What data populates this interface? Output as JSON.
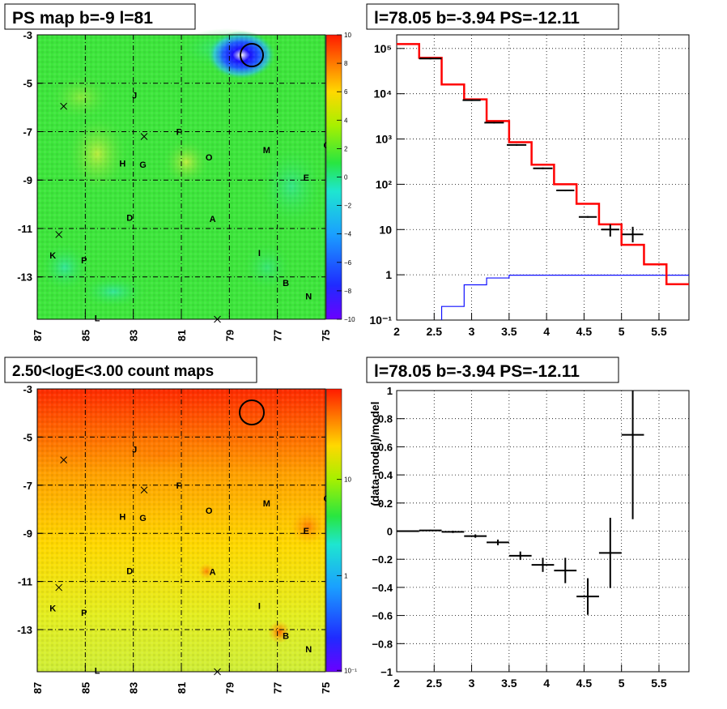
{
  "panels": {
    "tl": {
      "title": "PS map b=-9 l=81"
    },
    "tr": {
      "title": "l=78.05 b=-3.94 PS=-12.11"
    },
    "bl": {
      "title": "2.50<logE<3.00 count maps"
    },
    "br": {
      "title": "l=78.05 b=-3.94 PS=-12.11"
    }
  },
  "map_axes": {
    "x_ticks": [
      "87",
      "85",
      "83",
      "81",
      "79",
      "77",
      "75"
    ],
    "y_ticks": [
      "-3",
      "-5",
      "-7",
      "-9",
      "-11",
      "-13"
    ]
  },
  "map_labels": [
    {
      "t": "J",
      "l": 82.95,
      "b": -5.5
    },
    {
      "t": "F",
      "l": 81.1,
      "b": -7.0
    },
    {
      "t": "H",
      "l": 83.45,
      "b": -8.3
    },
    {
      "t": "G",
      "l": 82.6,
      "b": -8.35
    },
    {
      "t": "O",
      "l": 79.85,
      "b": -8.05
    },
    {
      "t": "M",
      "l": 77.45,
      "b": -7.75
    },
    {
      "t": "C",
      "l": 74.95,
      "b": -7.55
    },
    {
      "t": "E",
      "l": 75.8,
      "b": -8.9
    },
    {
      "t": "D",
      "l": 83.15,
      "b": -10.55
    },
    {
      "t": "A",
      "l": 79.7,
      "b": -10.6
    },
    {
      "t": "I",
      "l": 77.75,
      "b": -12.0
    },
    {
      "t": "K",
      "l": 86.35,
      "b": -12.1
    },
    {
      "t": "P",
      "l": 85.05,
      "b": -12.3
    },
    {
      "t": "B",
      "l": 76.65,
      "b": -13.25
    },
    {
      "t": "N",
      "l": 75.7,
      "b": -13.8
    },
    {
      "t": "L",
      "l": 84.5,
      "b": -14.7
    }
  ],
  "map_crosses": [
    {
      "l": 85.9,
      "b": -5.95
    },
    {
      "l": 82.55,
      "b": -7.2
    },
    {
      "l": 86.1,
      "b": -11.25
    },
    {
      "l": 79.5,
      "b": -14.75
    }
  ],
  "colorbars": {
    "ps": {
      "labels": [
        "10",
        "8",
        "6",
        "4",
        "2",
        "0",
        "−2",
        "−4",
        "−6",
        "−8",
        "−10"
      ]
    },
    "counts": {
      "labels": [
        "10",
        "1",
        "10⁻¹"
      ]
    }
  },
  "chart_data": [
    {
      "type": "heatmap",
      "title": "PS map b=-9 l=81",
      "xlim": [
        87,
        75
      ],
      "ylim": [
        -14.75,
        -3
      ],
      "zlim": [
        -10,
        10
      ],
      "marker_circle": {
        "l": 78.05,
        "b": -3.94
      },
      "description_values": {
        "background": 0,
        "blue_dip_at": [
          78.05,
          -3.94
        ]
      }
    },
    {
      "type": "line",
      "title": "l=78.05 b=-3.94 PS=-12.11",
      "log_y": true,
      "xlim": [
        2,
        5.9
      ],
      "ylim": [
        0.1,
        200000
      ],
      "grid": true,
      "y_ticks": [
        "10⁻¹",
        "1",
        "10",
        "10²",
        "10³",
        "10⁴",
        "10⁵"
      ],
      "x_ticks": [
        "2",
        "2.5",
        "3",
        "3.5",
        "4",
        "4.5",
        "5",
        "5.5"
      ],
      "model_red": {
        "edges": [
          2,
          2.3,
          2.6,
          2.9,
          3.2,
          3.5,
          3.8,
          4.1,
          4.4,
          4.7,
          5.0,
          5.3,
          5.6,
          5.9
        ],
        "values": [
          125000,
          62000,
          16000,
          7500,
          2500,
          850,
          270,
          100,
          37,
          13,
          4.6,
          1.7,
          0.62
        ]
      },
      "data_black": [
        {
          "x": 2.45,
          "xerr": 0.15,
          "y": 60000
        },
        {
          "x": 3.0,
          "xerr": 0.12,
          "y": 7200
        },
        {
          "x": 3.3,
          "xerr": 0.13,
          "y": 2300
        },
        {
          "x": 3.6,
          "xerr": 0.13,
          "y": 740
        },
        {
          "x": 3.95,
          "xerr": 0.13,
          "y": 225
        },
        {
          "x": 4.25,
          "xerr": 0.12,
          "y": 73
        },
        {
          "x": 4.55,
          "xerr": 0.12,
          "y": 19
        },
        {
          "x": 4.85,
          "xerr": 0.12,
          "y": 10,
          "yerr": [
            7,
            13
          ]
        },
        {
          "x": 5.15,
          "xerr": 0.14,
          "y": 7.8,
          "yerr": [
            5.2,
            11.5
          ]
        }
      ],
      "model_blue": {
        "edges": [
          2,
          2.6,
          2.9,
          3.2,
          3.5,
          5.9
        ],
        "values": [
          0.05,
          0.2,
          0.6,
          0.85,
          0.98
        ]
      }
    },
    {
      "type": "heatmap",
      "title": "2.50<logE<3.00 count maps",
      "xlim": [
        87,
        75
      ],
      "ylim": [
        -14.75,
        -3
      ],
      "z_scale": "log",
      "zlim": [
        0.1,
        30
      ],
      "marker_circle": {
        "l": 78.05,
        "b": -3.94
      }
    },
    {
      "type": "scatter",
      "title": "l=78.05 b=-3.94 PS=-12.11",
      "xlim": [
        2,
        5.9
      ],
      "ylim": [
        -1,
        1
      ],
      "grid": true,
      "ylabel": "(data-model)/model",
      "x_ticks": [
        "2",
        "2.5",
        "3",
        "3.5",
        "4",
        "4.5",
        "5",
        "5.5"
      ],
      "y_ticks": [
        "1",
        "0.8",
        "0.6",
        "0.4",
        "0.2",
        "0",
        "−0.2",
        "−0.4",
        "−0.6",
        "−0.8",
        "−1"
      ],
      "points": [
        {
          "x": 2.15,
          "xerr": 0.15,
          "y": 0.0,
          "yerr": 0.005
        },
        {
          "x": 2.45,
          "xerr": 0.15,
          "y": 0.005,
          "yerr": 0.005
        },
        {
          "x": 2.75,
          "xerr": 0.15,
          "y": -0.005,
          "yerr": 0.008
        },
        {
          "x": 3.05,
          "xerr": 0.15,
          "y": -0.035,
          "yerr": 0.012
        },
        {
          "x": 3.35,
          "xerr": 0.15,
          "y": -0.08,
          "yerr": 0.02
        },
        {
          "x": 3.65,
          "xerr": 0.15,
          "y": -0.175,
          "yerr": 0.03
        },
        {
          "x": 3.95,
          "xerr": 0.15,
          "y": -0.24,
          "yerr": 0.05
        },
        {
          "x": 4.25,
          "xerr": 0.15,
          "y": -0.28,
          "yerr": 0.09
        },
        {
          "x": 4.55,
          "xerr": 0.15,
          "y": -0.465,
          "yerr": 0.13
        },
        {
          "x": 4.85,
          "xerr": 0.15,
          "y": -0.155,
          "yerr": 0.25
        },
        {
          "x": 5.15,
          "xerr": 0.15,
          "y": 0.685,
          "yerr": 0.6
        }
      ]
    }
  ]
}
